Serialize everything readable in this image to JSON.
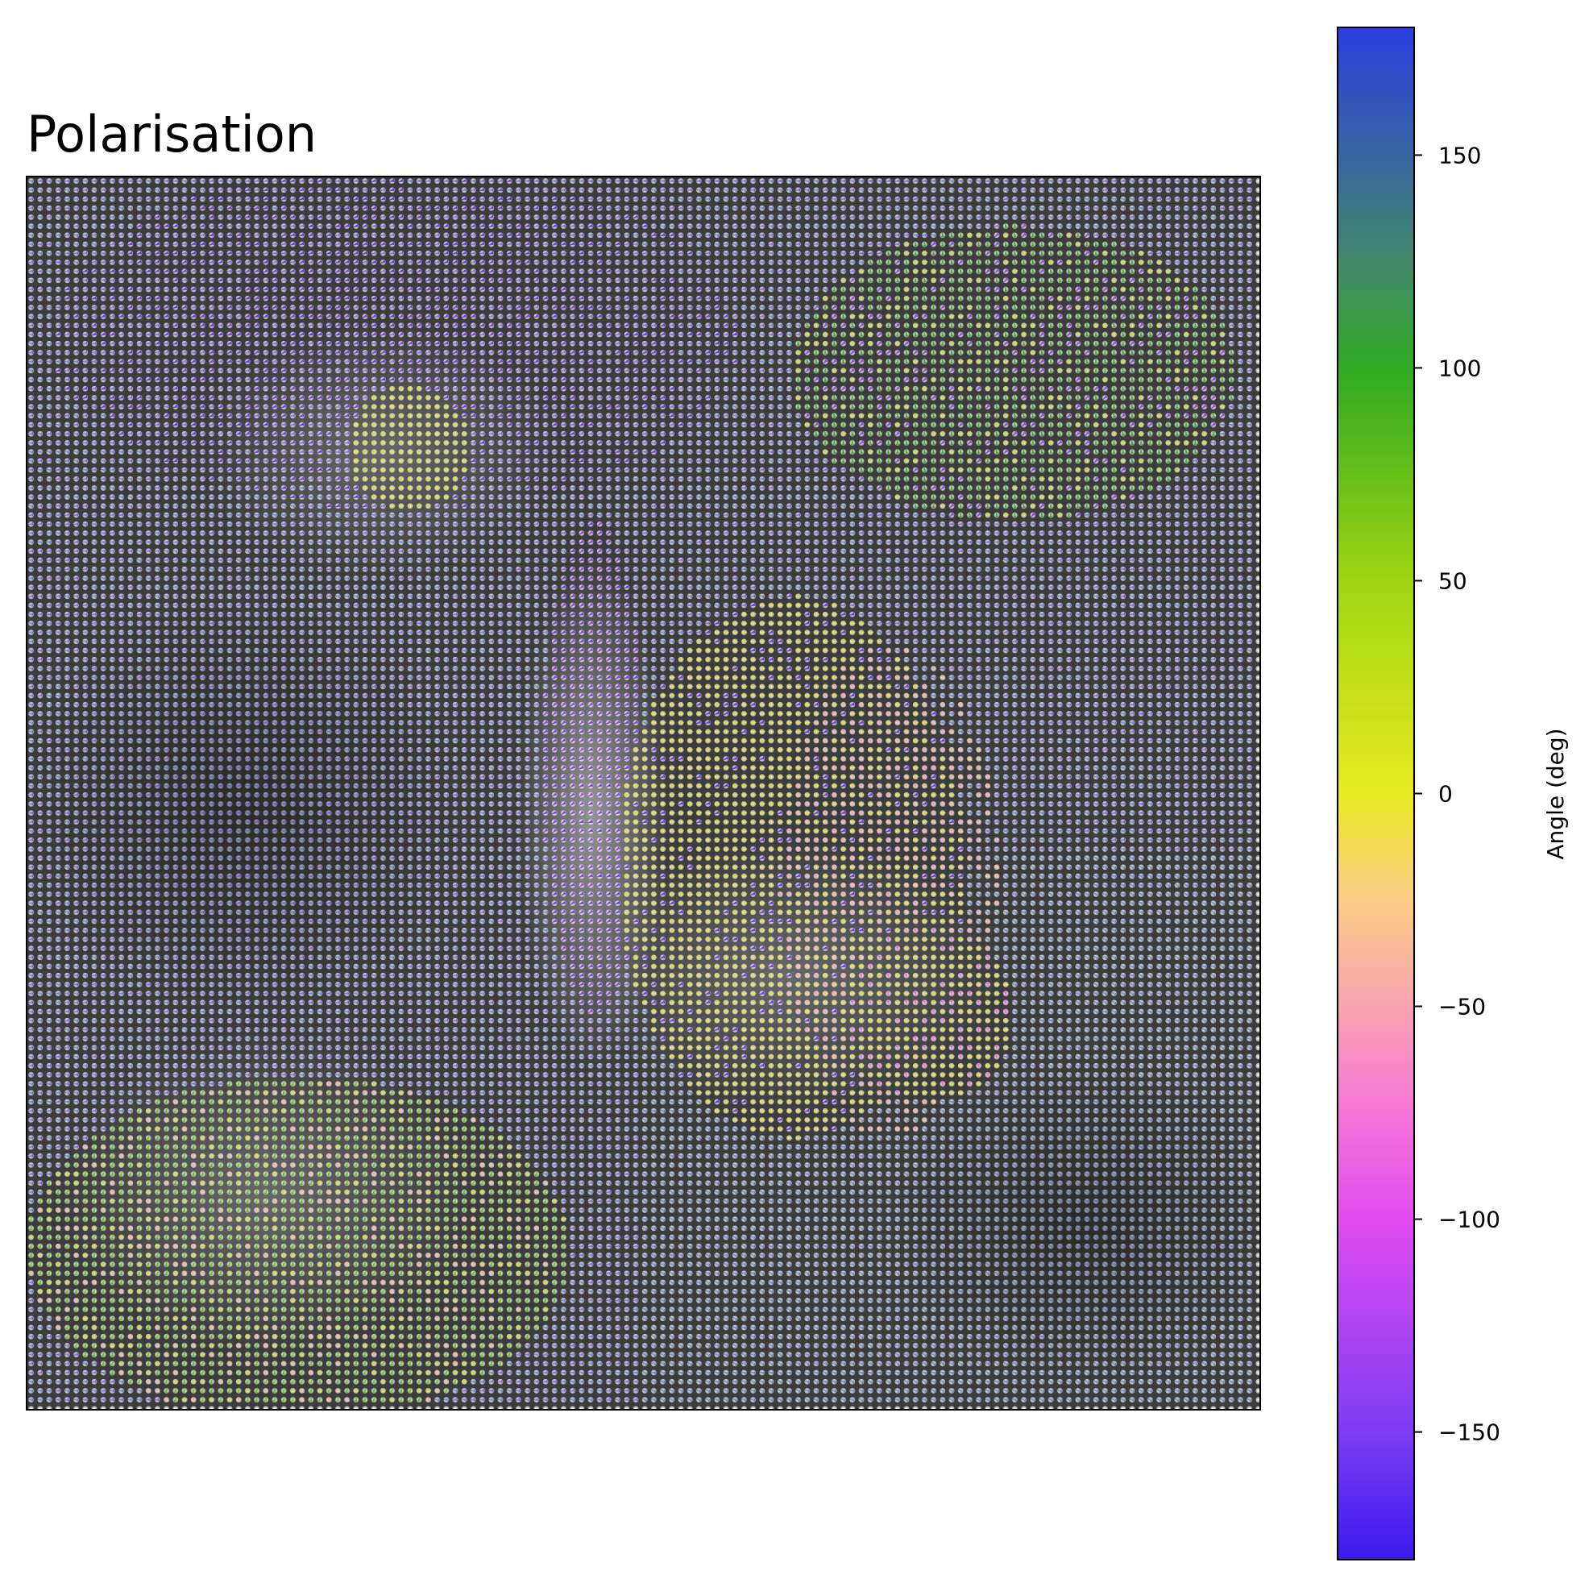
{
  "chart_data": {
    "type": "heatmap",
    "subtype": "vector-field-over-atomic-lattice-image",
    "title": "Polarisation",
    "xlabel": "",
    "ylabel": "",
    "axes_ticks_visible": false,
    "grid": false,
    "background_image": "grayscale atomic-resolution lattice",
    "colorbar": {
      "label": "Angle (deg)",
      "range": [
        -180,
        180
      ],
      "ticks": [
        150,
        100,
        50,
        0,
        -50,
        -100,
        -150
      ],
      "tick_labels": [
        "150",
        "100",
        "50",
        "0",
        "−50",
        "−100",
        "−150"
      ],
      "placement": "right",
      "colormap_stops": [
        {
          "value": -180,
          "color": "#3a1aee"
        },
        {
          "value": -150,
          "color": "#7d3cf2"
        },
        {
          "value": -100,
          "color": "#e14bf0"
        },
        {
          "value": -75,
          "color": "#f675d8"
        },
        {
          "value": -50,
          "color": "#f9a3b0"
        },
        {
          "value": -25,
          "color": "#fbcc86"
        },
        {
          "value": 0,
          "color": "#e8ea22"
        },
        {
          "value": 50,
          "color": "#9fd512"
        },
        {
          "value": 100,
          "color": "#2fa923"
        },
        {
          "value": 125,
          "color": "#43886b"
        },
        {
          "value": 150,
          "color": "#3765a1"
        },
        {
          "value": 180,
          "color": "#2b3fe0"
        }
      ]
    },
    "domains": [
      {
        "region": "left and top-left",
        "dominant_angle_deg": 180
      },
      {
        "region": "upper-left curved band",
        "dominant_angle_deg": -160
      },
      {
        "region": "center domain wall",
        "dominant_angle_deg": -150
      },
      {
        "region": "center-right",
        "dominant_angle_deg": 0
      },
      {
        "region": "right-center stripes",
        "dominant_angle_deg": -60
      },
      {
        "region": "upper-right",
        "dominant_angle_deg": 90
      },
      {
        "region": "lower-left",
        "dominant_angle_deg": 70
      },
      {
        "region": "lower-right",
        "dominant_angle_deg": 160
      }
    ]
  }
}
